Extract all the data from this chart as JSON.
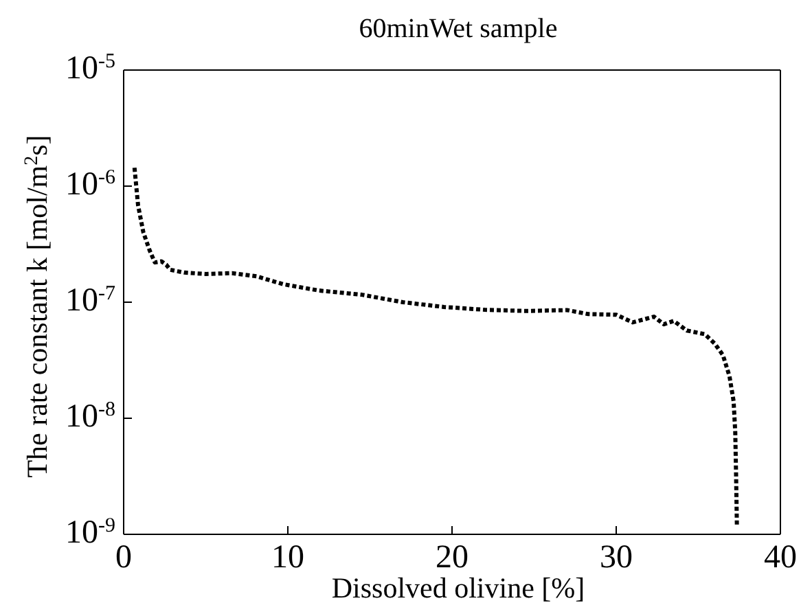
{
  "chart_data": {
    "type": "line",
    "title": "60minWet sample",
    "xlabel": "Dissolved olivine [%]",
    "ylabel": "The rate constant k [mol/m$^{2}$s]",
    "x": [
      0.66,
      0.88,
      1.2,
      1.58,
      1.9,
      2.3,
      2.6,
      2.84,
      3.7,
      5.0,
      6.6,
      8.1,
      9.7,
      11.9,
      14.5,
      17,
      19.5,
      22,
      24.5,
      27.0,
      28.3,
      30.0,
      31.0,
      32.3,
      32.9,
      33.5,
      34.3,
      35.4,
      36.0,
      36.5,
      36.9,
      37.15,
      37.25,
      37.3,
      37.35
    ],
    "series": [
      {
        "color": "#000000",
        "values": [
          1.44e-06,
          6.8e-07,
          4e-07,
          2.8e-07,
          2.2e-07,
          2.25e-07,
          2.1e-07,
          1.9e-07,
          1.8e-07,
          1.75e-07,
          1.78e-07,
          1.67e-07,
          1.43e-07,
          1.26e-07,
          1.16e-07,
          1e-07,
          9.1e-08,
          8.6e-08,
          8.4e-08,
          8.55e-08,
          7.9e-08,
          7.8e-08,
          6.7e-08,
          7.5e-08,
          6.45e-08,
          6.9e-08,
          5.7e-08,
          5.3e-08,
          4.4e-08,
          3.5e-08,
          2.3e-08,
          1.4e-08,
          7.6e-09,
          3.3e-09,
          1.2e-09
        ]
      }
    ],
    "xlim": [
      0,
      40
    ],
    "xticks": [
      0,
      10,
      20,
      30,
      40
    ],
    "ylim": [
      1e-09,
      1e-05
    ],
    "yticks": [
      {
        "value": 1e-09,
        "label": "10$^{-9}$"
      },
      {
        "value": 1e-08,
        "label": "10$^{-8}$"
      },
      {
        "value": 1e-07,
        "label": "10$^{-7}$"
      },
      {
        "value": 1e-06,
        "label": "10$^{-6}$"
      },
      {
        "value": 1e-05,
        "label": "10$^{-5}$"
      }
    ],
    "log": "y",
    "grid": false,
    "legend": false,
    "marker": "none",
    "line_style": "dotted"
  }
}
